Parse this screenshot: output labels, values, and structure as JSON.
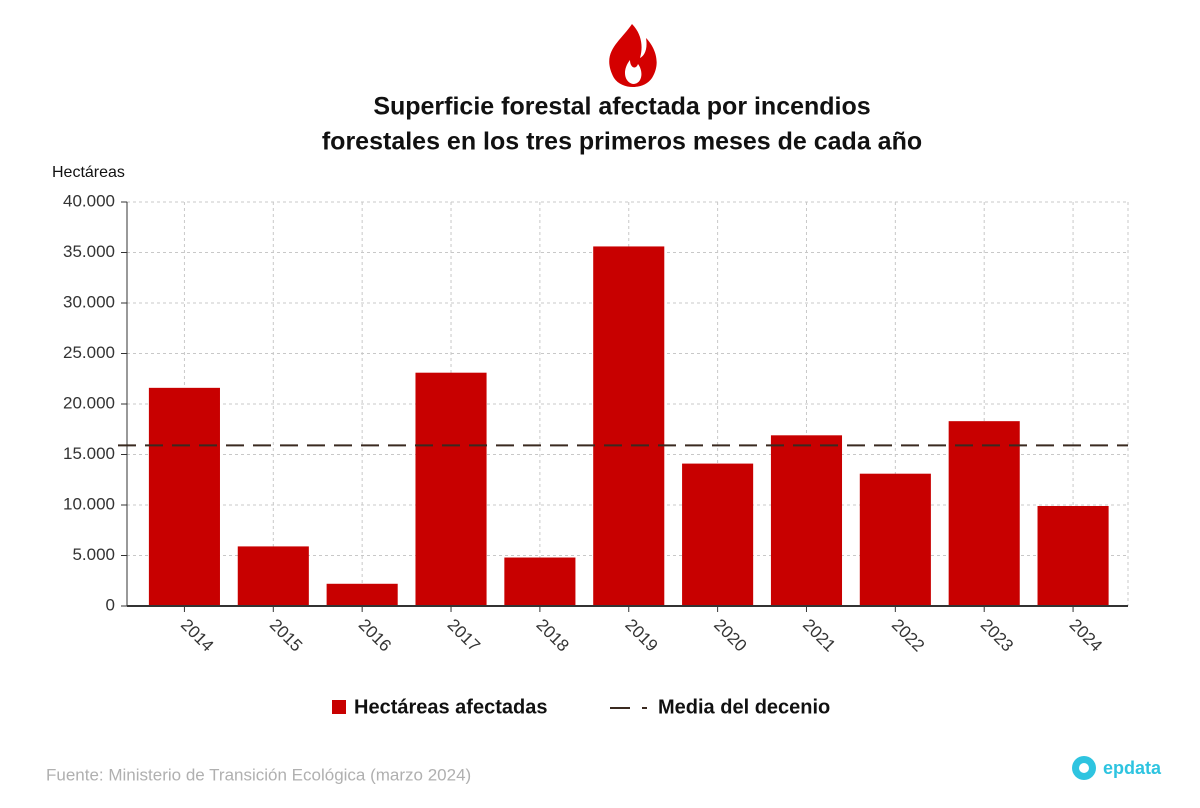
{
  "chart_data": {
    "type": "bar",
    "title_lines": [
      "Superficie forestal afectada por incendios",
      "forestales en los tres primeros meses de cada año"
    ],
    "y_label": "Hectáreas",
    "categories": [
      "2014",
      "2015",
      "2016",
      "2017",
      "2018",
      "2019",
      "2020",
      "2021",
      "2022",
      "2023",
      "2024"
    ],
    "series": [
      {
        "name": "Hectáreas afectadas",
        "color": "#c80000",
        "values": [
          21600,
          5900,
          2200,
          23100,
          4800,
          35600,
          14100,
          16900,
          13100,
          18300,
          9900
        ]
      }
    ],
    "reference_line": {
      "name": "Media del decenio",
      "value": 15900,
      "color": "#3a2a20"
    },
    "ylim": [
      0,
      40000
    ],
    "yticks": [
      0,
      {
        "value": 5000,
        "label": "5.000"
      },
      {
        "value": 10000,
        "label": "10.000"
      },
      {
        "value": 15000,
        "label": "15.000"
      },
      {
        "value": 20000,
        "label": "20.000"
      },
      {
        "value": 25000,
        "label": "25.000"
      },
      {
        "value": 30000,
        "label": "30.000"
      },
      {
        "value": 35000,
        "label": "35.000"
      },
      {
        "value": 40000,
        "label": "40.000"
      }
    ],
    "grid": true,
    "source": "Fuente: Ministerio de Transición Ecológica (marzo 2024)",
    "brand": "epdata"
  }
}
